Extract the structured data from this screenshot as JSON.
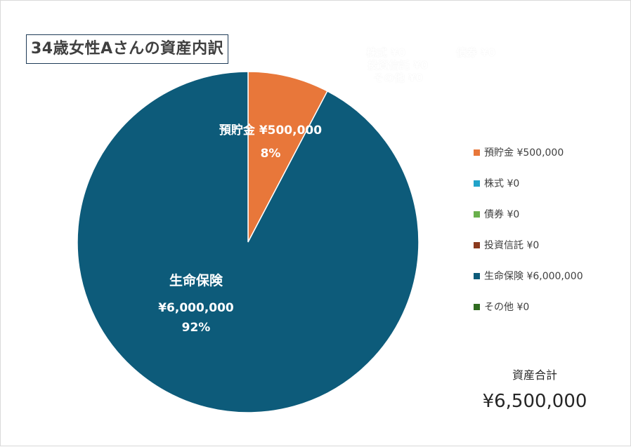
{
  "chart_data": {
    "type": "pie",
    "title": "34歳女性Aさんの資産内訳",
    "categories": [
      "預貯金",
      "株式",
      "債券",
      "投資信託",
      "生命保険",
      "その他"
    ],
    "values": [
      500000,
      0,
      0,
      0,
      6000000,
      0
    ],
    "colors": [
      "#e8773a",
      "#22a3c9",
      "#6ab04c",
      "#8b3a1e",
      "#0d5b7a",
      "#2f6b1f"
    ],
    "legend": [
      "預貯金 ¥500,000",
      "株式 ¥0",
      "債券 ¥0",
      "投資信託 ¥0",
      "生命保険 ¥6,000,000",
      "その他 ¥0"
    ],
    "legend_position": "right",
    "data_labels": {
      "savings": {
        "name": "預貯金",
        "value": "¥500,000",
        "percent": "8%"
      },
      "insurance": {
        "name": "生命保険",
        "value": "¥6,000,000",
        "percent": "92%"
      }
    },
    "overlapping_zero_labels": [
      "株式 ¥0",
      "債券 ¥0",
      "投資信託 ¥0",
      "その他 ¥0"
    ]
  },
  "total": {
    "label": "資産合計",
    "value": "¥6,500,000"
  }
}
